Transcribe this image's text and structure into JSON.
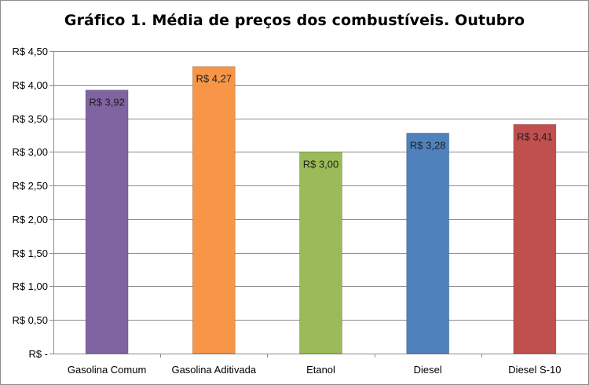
{
  "chart_data": {
    "type": "bar",
    "title": "Gráfico 1. Média de preços dos combustíveis. Outubro",
    "xlabel": "",
    "ylabel": "",
    "categories": [
      "Gasolina Comum",
      "Gasolina Aditivada",
      "Etanol",
      "Diesel",
      "Diesel S-10"
    ],
    "values": [
      3.92,
      4.27,
      3.0,
      3.28,
      3.41
    ],
    "data_labels": [
      "R$ 3,92",
      "R$ 4,27",
      "R$ 3,00",
      "R$ 3,28",
      "R$ 3,41"
    ],
    "bar_colors": [
      "#8064a2",
      "#f79646",
      "#9bbb59",
      "#4f81bd",
      "#c0504d"
    ],
    "ylim": [
      0,
      4.5
    ],
    "ytick_values": [
      0,
      0.5,
      1.0,
      1.5,
      2.0,
      2.5,
      3.0,
      3.5,
      4.0,
      4.5
    ],
    "ytick_labels": [
      "R$ -",
      "R$ 0,50",
      "R$ 1,00",
      "R$ 1,50",
      "R$ 2,00",
      "R$ 2,50",
      "R$ 3,00",
      "R$ 3,50",
      "R$ 4,00",
      "R$ 4,50"
    ],
    "grid": true,
    "legend": "none",
    "gridline_color": "#8c8c8c"
  }
}
